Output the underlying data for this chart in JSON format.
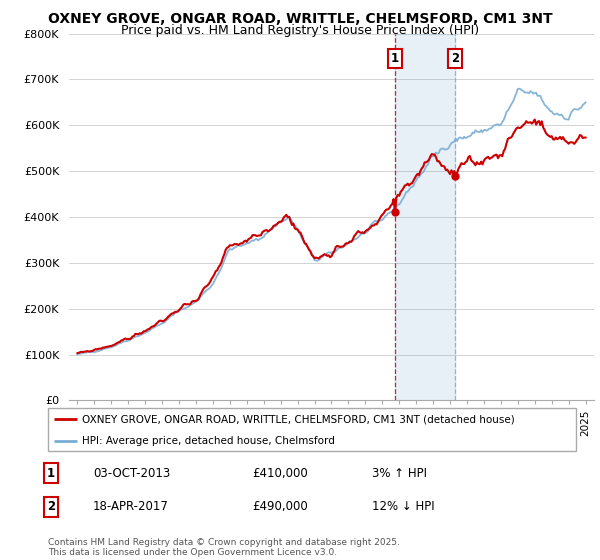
{
  "title": "OXNEY GROVE, ONGAR ROAD, WRITTLE, CHELMSFORD, CM1 3NT",
  "subtitle": "Price paid vs. HM Land Registry's House Price Index (HPI)",
  "legend_line1": "OXNEY GROVE, ONGAR ROAD, WRITTLE, CHELMSFORD, CM1 3NT (detached house)",
  "legend_line2": "HPI: Average price, detached house, Chelmsford",
  "annotation1_label": "1",
  "annotation1_date": "03-OCT-2013",
  "annotation1_price": "£410,000",
  "annotation1_hpi": "3% ↑ HPI",
  "annotation1_year": 2013.75,
  "annotation1_value": 410000,
  "annotation2_label": "2",
  "annotation2_date": "18-APR-2017",
  "annotation2_price": "£490,000",
  "annotation2_hpi": "12% ↓ HPI",
  "annotation2_year": 2017.3,
  "annotation2_value": 490000,
  "hpi_shading_x1": 2013.75,
  "hpi_shading_x2": 2017.3,
  "ylim": [
    0,
    800000
  ],
  "yticks": [
    0,
    100000,
    200000,
    300000,
    400000,
    500000,
    600000,
    700000,
    800000
  ],
  "ytick_labels": [
    "£0",
    "£100K",
    "£200K",
    "£300K",
    "£400K",
    "£500K",
    "£600K",
    "£700K",
    "£800K"
  ],
  "xlim": [
    1994.5,
    2025.5
  ],
  "xticks": [
    1995,
    1996,
    1997,
    1998,
    1999,
    2000,
    2001,
    2002,
    2003,
    2004,
    2005,
    2006,
    2007,
    2008,
    2009,
    2010,
    2011,
    2012,
    2013,
    2014,
    2015,
    2016,
    2017,
    2018,
    2019,
    2020,
    2021,
    2022,
    2023,
    2024,
    2025
  ],
  "property_color": "#cc0000",
  "hpi_color": "#7aadd4",
  "vline1_color": "#cc0000",
  "vline2_color": "#7aadd4",
  "grid_color": "#cccccc",
  "background_color": "#ffffff",
  "footnote": "Contains HM Land Registry data © Crown copyright and database right 2025.\nThis data is licensed under the Open Government Licence v3.0.",
  "title_fontsize": 10,
  "subtitle_fontsize": 9
}
